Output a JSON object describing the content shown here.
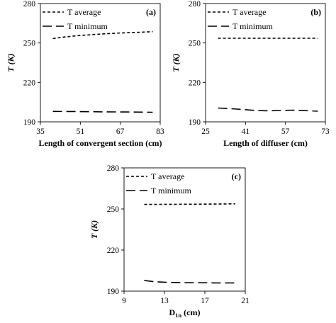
{
  "chart_data": [
    {
      "type": "line",
      "panel_label": "(a)",
      "xlabel": "Length of convergent section (cm)",
      "ylabel": "T (K)",
      "xlim": [
        35,
        83
      ],
      "ylim": [
        190,
        280
      ],
      "xticks": [
        35,
        51,
        67,
        83
      ],
      "yticks": [
        190,
        220,
        250,
        280
      ],
      "legend_position": "top-left",
      "series": [
        {
          "name": "T average",
          "style": "short-dash",
          "x": [
            40,
            45,
            50,
            55,
            60,
            65,
            70,
            75,
            80
          ],
          "y": [
            253.4,
            254.6,
            255.6,
            256.3,
            256.9,
            257.4,
            257.8,
            258.2,
            258.6
          ]
        },
        {
          "name": "T minimum",
          "style": "long-dash",
          "x": [
            40,
            50,
            60,
            70,
            80
          ],
          "y": [
            197.9,
            197.8,
            197.6,
            197.5,
            197.3
          ]
        }
      ]
    },
    {
      "type": "line",
      "panel_label": "(b)",
      "xlabel": "Length of diffuser (cm)",
      "ylabel": "T (K)",
      "xlim": [
        25,
        73
      ],
      "ylim": [
        190,
        280
      ],
      "xticks": [
        25,
        41,
        57,
        73
      ],
      "yticks": [
        190,
        220,
        250,
        280
      ],
      "legend_position": "top-left",
      "series": [
        {
          "name": "T average",
          "style": "short-dash",
          "x": [
            30,
            40,
            50,
            60,
            70
          ],
          "y": [
            253.6,
            253.6,
            253.6,
            253.6,
            253.6
          ]
        },
        {
          "name": "T minimum",
          "style": "long-dash",
          "x": [
            30,
            35,
            40,
            45,
            50,
            55,
            60,
            65,
            70
          ],
          "y": [
            200.5,
            200,
            199.4,
            198.6,
            198.4,
            198.6,
            198.9,
            198.5,
            198.1
          ]
        }
      ]
    },
    {
      "type": "line",
      "panel_label": "(c)",
      "xlabel": "D1n (cm)",
      "xlabel_main": "D",
      "xlabel_sub": "1n",
      "xlabel_unit": " (cm)",
      "ylabel": "T (K)",
      "xlim": [
        9,
        21
      ],
      "ylim": [
        190,
        280
      ],
      "xticks": [
        9,
        13,
        17,
        21
      ],
      "yticks": [
        190,
        220,
        250,
        280
      ],
      "legend_position": "top-left",
      "series": [
        {
          "name": "T average",
          "style": "short-dash",
          "x": [
            11,
            14,
            17,
            20
          ],
          "y": [
            253.3,
            253.4,
            253.5,
            253.7
          ]
        },
        {
          "name": "T minimum",
          "style": "long-dash",
          "x": [
            11,
            12,
            13,
            14,
            15,
            16,
            17,
            18,
            19,
            20
          ],
          "y": [
            197.8,
            196.9,
            196.5,
            196.3,
            196.2,
            196.1,
            196.1,
            196.0,
            196.0,
            196.0
          ]
        }
      ]
    }
  ]
}
